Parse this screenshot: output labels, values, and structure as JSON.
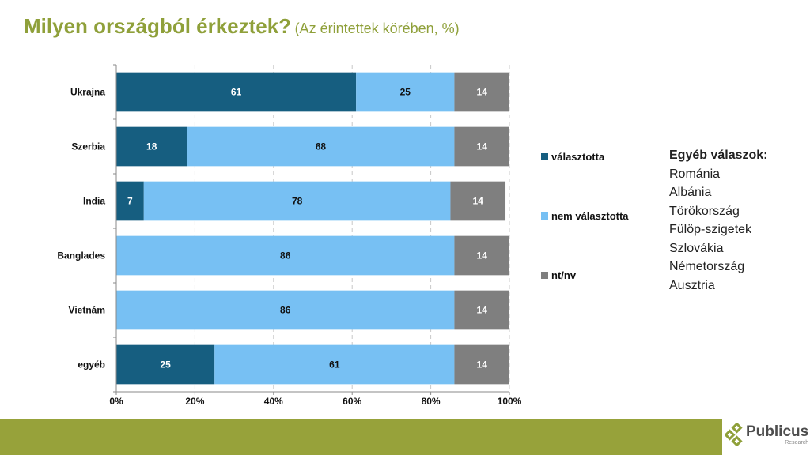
{
  "title": {
    "main": "Milyen országból érkeztek?",
    "sub": "(Az érintettek körében, %)"
  },
  "colors": {
    "title": "#8fa03a",
    "chose": "#165e80",
    "not_chose": "#77c0f3",
    "dk": "#7f7f7f",
    "footer": "#97a23a"
  },
  "chart_data": {
    "type": "bar",
    "orientation": "horizontal",
    "stacked": "100%",
    "title": "Milyen országból érkeztek? (Az érintettek körében, %)",
    "categories": [
      "Ukrajna",
      "Szerbia",
      "India",
      "Banglades",
      "Vietnám",
      "egyéb"
    ],
    "series": [
      {
        "name": "választotta",
        "values": [
          61,
          18,
          7,
          0,
          0,
          25
        ]
      },
      {
        "name": "nem választotta",
        "values": [
          25,
          68,
          78,
          86,
          86,
          61
        ]
      },
      {
        "name": "nt/nv",
        "values": [
          14,
          14,
          14,
          14,
          14,
          14
        ]
      }
    ],
    "xlim": [
      0,
      100
    ],
    "xticks": [
      "0%",
      "20%",
      "40%",
      "60%",
      "80%",
      "100%"
    ],
    "xlabel": "",
    "ylabel": "",
    "grid": "vertical dashed",
    "legend": "right"
  },
  "legend": [
    {
      "label": "választotta"
    },
    {
      "label": "nem választotta"
    },
    {
      "label": "nt/nv"
    }
  ],
  "other_answers": {
    "header": "Egyéb válaszok:",
    "items": [
      "Románia",
      "Albánia",
      "Törökország",
      "Fülöp-szigetek",
      "Szlovákia",
      "Németország",
      "Ausztria"
    ]
  },
  "logo": {
    "name": "Publicus",
    "sub": "Research"
  }
}
